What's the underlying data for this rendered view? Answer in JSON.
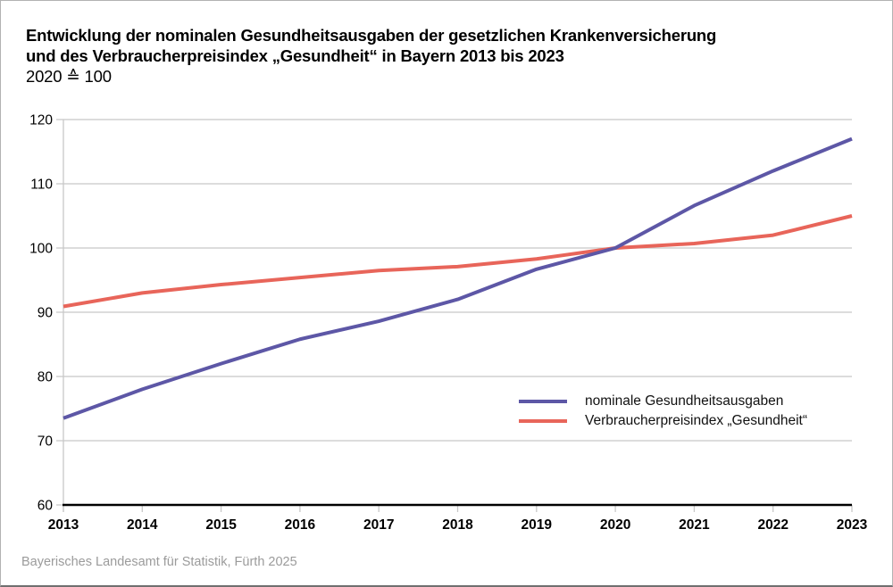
{
  "title": {
    "line1": "Entwicklung der nominalen Gesundheitsausgaben der gesetzlichen Krankenversicherung",
    "line2": "und des Verbraucherpreisindex „Gesundheit“ in Bayern 2013 bis 2023",
    "line3": "2020 ≙ 100"
  },
  "footer": {
    "source": "Bayerisches Landesamt für Statistik, Fürth 2025"
  },
  "colors": {
    "series_nominal": "#5d57a6",
    "series_vpi": "#e8655a",
    "grid": "#c8c8c8",
    "axis": "#000000",
    "tick_label": "#000000",
    "source_text": "#9b9b9b"
  },
  "chart_data": {
    "type": "line",
    "title": "Entwicklung der nominalen Gesundheitsausgaben der gesetzlichen Krankenversicherung und des Verbraucherpreisindex „Gesundheit“ in Bayern 2013 bis 2023",
    "subtitle": "2020 ≙ 100",
    "x": [
      2013,
      2014,
      2015,
      2016,
      2017,
      2018,
      2019,
      2020,
      2021,
      2022,
      2023
    ],
    "series": [
      {
        "name": "nominale Gesundheitsausgaben",
        "color": "#5d57a6",
        "values": [
          73.5,
          78.0,
          82.0,
          85.8,
          88.6,
          92.0,
          96.7,
          100.0,
          106.6,
          112.0,
          117.0
        ]
      },
      {
        "name": "Verbraucherpreisindex „Gesundheit“",
        "color": "#e8655a",
        "values": [
          90.9,
          93.0,
          94.3,
          95.4,
          96.5,
          97.1,
          98.3,
          100.0,
          100.7,
          102.0,
          105.0
        ]
      }
    ],
    "ylim": [
      60,
      120
    ],
    "yticks": [
      60,
      70,
      80,
      90,
      100,
      110,
      120
    ],
    "xlabel": "",
    "ylabel": "",
    "grid": "horizontal",
    "legend_position": "inside-right-bottom"
  }
}
